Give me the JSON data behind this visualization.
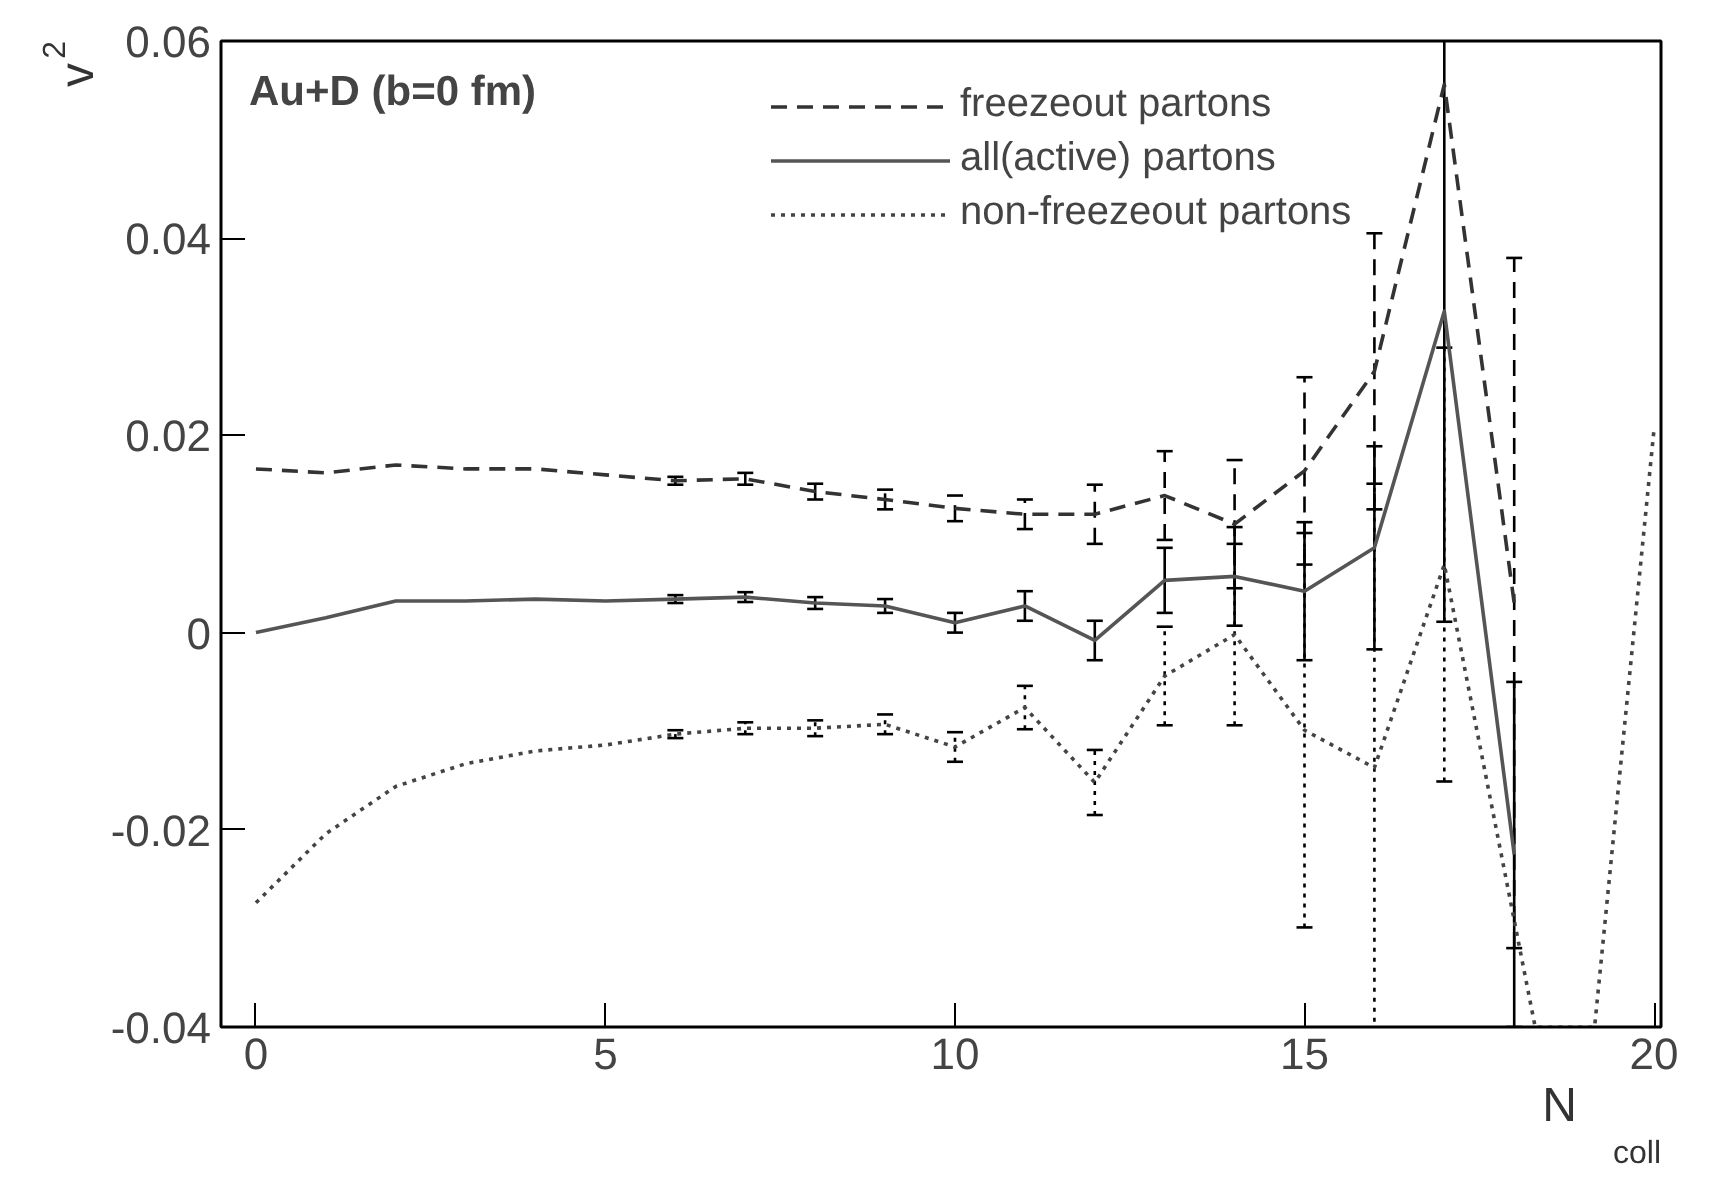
{
  "chart_data": {
    "type": "line",
    "xlabel": "N$_{coll}$",
    "ylabel": "v$_{2}$",
    "annotations": [
      "Au+D (b=0 fm)"
    ],
    "x": [
      0,
      1,
      2,
      3,
      4,
      5,
      6,
      7,
      8,
      9,
      10,
      11,
      12,
      13,
      14,
      15,
      16,
      17,
      18
    ],
    "xlim": [
      -0.5,
      20.1
    ],
    "ylim": [
      -0.04,
      0.06
    ],
    "xticks": [
      0,
      5,
      10,
      15,
      20
    ],
    "yticks": [
      {
        "value": -0.04,
        "label": "-0.04"
      },
      {
        "value": -0.02,
        "label": "-0.02"
      },
      0,
      {
        "value": 0.02,
        "label": "0.02"
      },
      {
        "value": 0.04,
        "label": "0.04"
      },
      {
        "value": 0.06,
        "label": "0.06"
      }
    ],
    "grid": false,
    "legend": "top right",
    "marker": "none",
    "series": [
      {
        "name": "freezeout partons",
        "color": "#333333",
        "line_style": "dashed",
        "values": [
          0.0166,
          0.0162,
          0.017,
          0.0166,
          0.0166,
          0.016,
          0.0154,
          0.0156,
          0.0143,
          0.0135,
          0.0126,
          0.012,
          0.012,
          0.0139,
          0.011,
          0.0164,
          0.0265,
          0.0556,
          0.003
        ],
        "errors": [
          null,
          null,
          null,
          null,
          null,
          null,
          0.0004,
          0.0006,
          0.0008,
          0.001,
          0.0013,
          0.0015,
          0.003,
          0.0045,
          0.0065,
          0.0095,
          0.014,
          null,
          0.035
        ]
      },
      {
        "name": "all(active) partons",
        "color": "#555555",
        "line_style": "solid",
        "values": [
          0,
          0.0015,
          0.0032,
          0.0032,
          0.0034,
          0.0032,
          0.0034,
          0.0036,
          0.003,
          0.0027,
          0.001,
          0.0027,
          -0.0008,
          0.0053,
          0.0057,
          0.0042,
          0.0086,
          0.0326,
          -0.0225
        ],
        "errors": [
          null,
          null,
          null,
          null,
          null,
          null,
          0.0004,
          0.0005,
          0.0006,
          0.0007,
          0.001,
          0.0015,
          0.002,
          0.0033,
          0.005,
          0.007,
          0.0103,
          0.0315,
          0.0175
        ]
      },
      {
        "name": "non-freezeout partons",
        "color": "#444444",
        "line_style": "dotted",
        "x": [
          0,
          1,
          2,
          3,
          4,
          5,
          6,
          7,
          8,
          9,
          10,
          11,
          12,
          13,
          14,
          15,
          16,
          17,
          18.3,
          19.15,
          20
        ],
        "values": [
          -0.0274,
          -0.0204,
          -0.0156,
          -0.0133,
          -0.012,
          -0.0114,
          -0.0103,
          -0.0097,
          -0.0097,
          -0.0093,
          -0.0116,
          -0.0076,
          -0.0152,
          -0.0044,
          -0.0002,
          -0.0099,
          -0.0137,
          0.0069,
          -0.04,
          -0.04,
          0.0206
        ],
        "errors": [
          null,
          null,
          null,
          null,
          null,
          null,
          0.0004,
          0.0006,
          0.0008,
          0.001,
          0.0015,
          0.0022,
          0.0033,
          0.005,
          0.0092,
          0.02,
          0.0288,
          0.022,
          null,
          null,
          null
        ]
      }
    ]
  }
}
